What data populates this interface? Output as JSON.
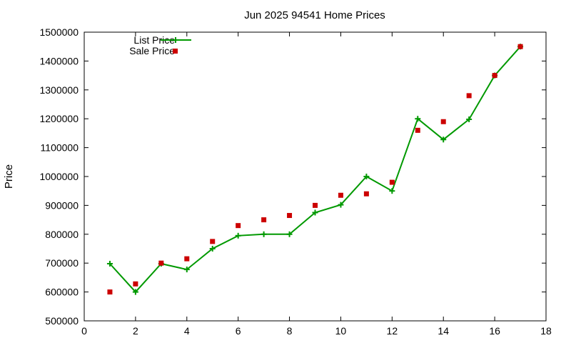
{
  "chart_data": {
    "type": "line",
    "title": "Jun 2025 94541 Home Prices",
    "xlabel": "",
    "ylabel": "Price",
    "xlim": [
      0,
      18
    ],
    "ylim": [
      500000,
      1500000
    ],
    "xticks": [
      0,
      2,
      4,
      6,
      8,
      10,
      12,
      14,
      16,
      18
    ],
    "yticks": [
      500000,
      600000,
      700000,
      800000,
      900000,
      1000000,
      1100000,
      1200000,
      1300000,
      1400000,
      1500000
    ],
    "grid": false,
    "legend_position": "top-left",
    "series": [
      {
        "name": "List Price",
        "style": "line-with-plus-markers",
        "color": "#009900",
        "x": [
          1,
          2,
          3,
          4,
          5,
          6,
          7,
          8,
          9,
          10,
          11,
          12,
          13,
          14,
          15,
          16,
          17
        ],
        "y": [
          698000,
          600000,
          698000,
          678000,
          750000,
          795000,
          800000,
          800000,
          875000,
          902000,
          1000000,
          950000,
          1200000,
          1128000,
          1198000,
          1350000,
          1450000
        ]
      },
      {
        "name": "Sale Price",
        "style": "square-markers",
        "color": "#cc0000",
        "x": [
          1,
          2,
          3,
          4,
          5,
          6,
          7,
          8,
          9,
          10,
          11,
          12,
          13,
          14,
          15,
          16,
          17
        ],
        "y": [
          600000,
          628000,
          700000,
          715000,
          775000,
          830000,
          850000,
          865000,
          900000,
          935000,
          940000,
          980000,
          1160000,
          1190000,
          1280000,
          1350000,
          1450000
        ]
      }
    ]
  }
}
